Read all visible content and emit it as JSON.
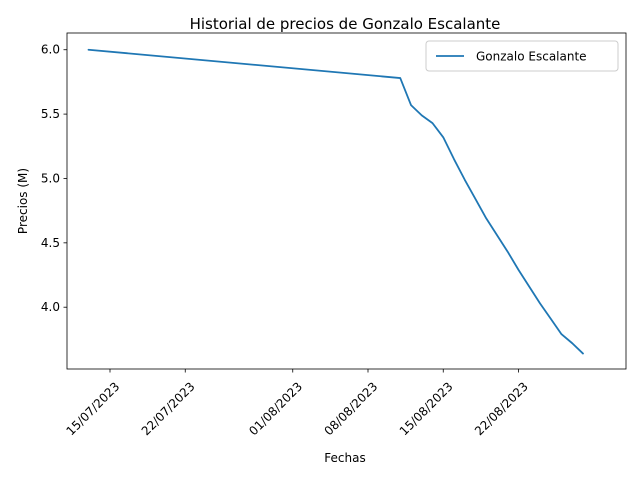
{
  "chart_data": {
    "type": "line",
    "title": "Historial de precios de Gonzalo Escalante",
    "xlabel": "Fechas",
    "ylabel": "Precios (M)",
    "x_range": [
      "2023-07-11",
      "2023-09-01"
    ],
    "ylim": [
      3.52,
      6.13
    ],
    "x_ticks": [
      {
        "date": "2023-07-15",
        "label": "15/07/2023"
      },
      {
        "date": "2023-07-22",
        "label": "22/07/2023"
      },
      {
        "date": "2023-08-01",
        "label": "01/08/2023"
      },
      {
        "date": "2023-08-08",
        "label": "08/08/2023"
      },
      {
        "date": "2023-08-15",
        "label": "15/08/2023"
      },
      {
        "date": "2023-08-22",
        "label": "22/08/2023"
      }
    ],
    "y_ticks": [
      {
        "value": 4.0,
        "label": "4.0"
      },
      {
        "value": 4.5,
        "label": "4.5"
      },
      {
        "value": 5.0,
        "label": "5.0"
      },
      {
        "value": 5.5,
        "label": "5.5"
      },
      {
        "value": 6.0,
        "label": "6.0"
      }
    ],
    "legend": {
      "position": "top-right",
      "entries": [
        "Gonzalo Escalante"
      ]
    },
    "series": [
      {
        "name": "Gonzalo Escalante",
        "color": "#1f77b4",
        "points": [
          {
            "date": "2023-07-13",
            "value": 6.0
          },
          {
            "date": "2023-08-11",
            "value": 5.78
          },
          {
            "date": "2023-08-12",
            "value": 5.57
          },
          {
            "date": "2023-08-13",
            "value": 5.49
          },
          {
            "date": "2023-08-14",
            "value": 5.43
          },
          {
            "date": "2023-08-15",
            "value": 5.32
          },
          {
            "date": "2023-08-16",
            "value": 5.15
          },
          {
            "date": "2023-08-17",
            "value": 4.99
          },
          {
            "date": "2023-08-18",
            "value": 4.84
          },
          {
            "date": "2023-08-19",
            "value": 4.69
          },
          {
            "date": "2023-08-20",
            "value": 4.56
          },
          {
            "date": "2023-08-21",
            "value": 4.43
          },
          {
            "date": "2023-08-22",
            "value": 4.29
          },
          {
            "date": "2023-08-23",
            "value": 4.16
          },
          {
            "date": "2023-08-24",
            "value": 4.03
          },
          {
            "date": "2023-08-25",
            "value": 3.91
          },
          {
            "date": "2023-08-26",
            "value": 3.79
          },
          {
            "date": "2023-08-27",
            "value": 3.72
          },
          {
            "date": "2023-08-28",
            "value": 3.64
          }
        ]
      }
    ]
  }
}
